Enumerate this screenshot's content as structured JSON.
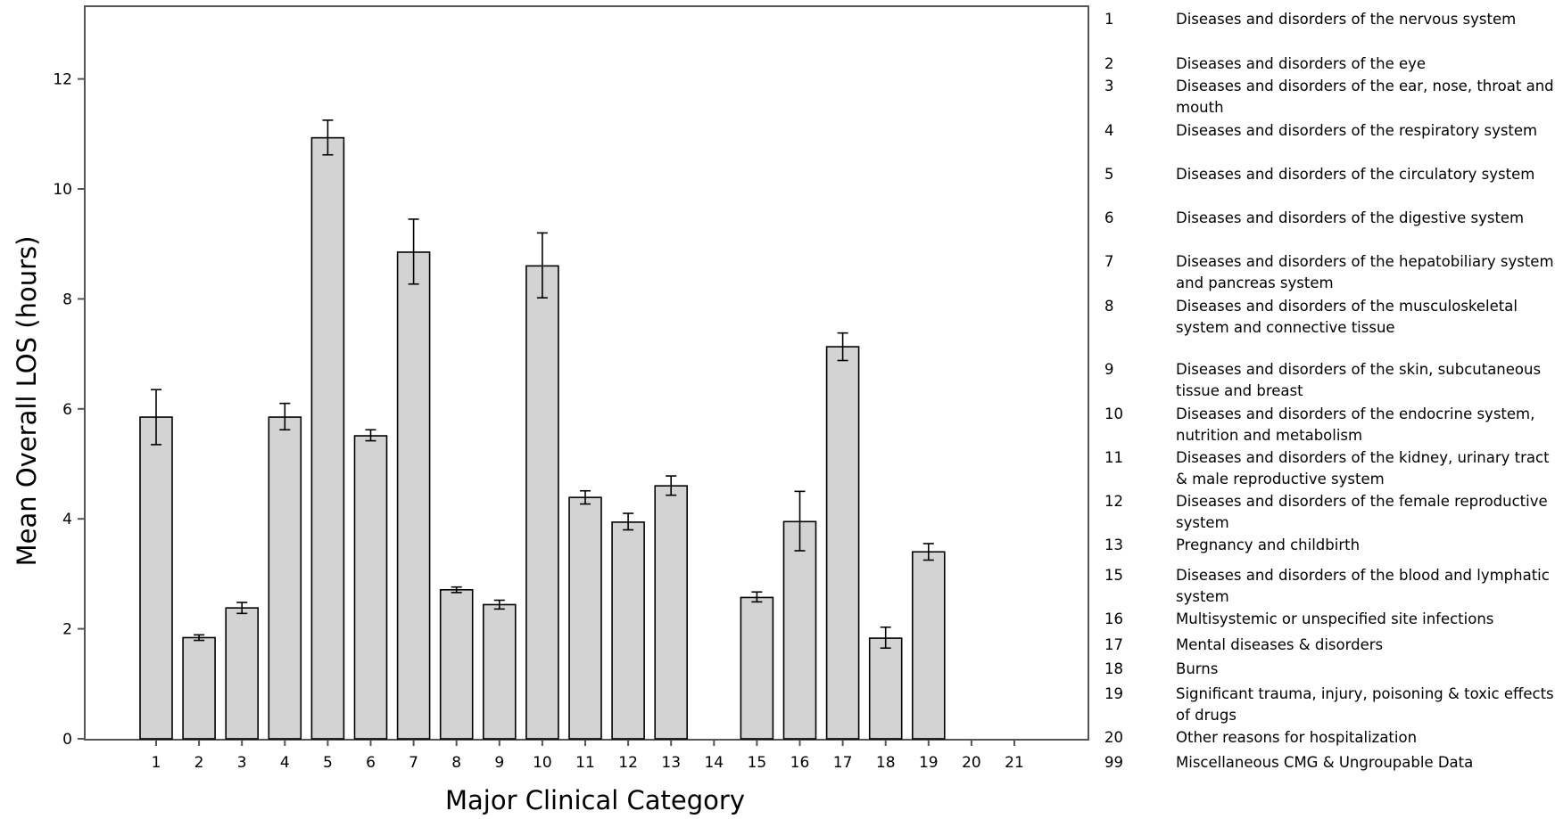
{
  "chart_data": {
    "type": "bar",
    "xlabel": "Major Clinical Category",
    "ylabel": "Mean Overall LOS (hours)",
    "ylim": [
      0,
      13.3
    ],
    "yticks": [
      0,
      2,
      4,
      6,
      8,
      10,
      12
    ],
    "grid": false,
    "error_bars": true,
    "categories": [
      "1",
      "2",
      "3",
      "4",
      "5",
      "6",
      "7",
      "8",
      "9",
      "10",
      "11",
      "12",
      "13",
      "14",
      "15",
      "16",
      "17",
      "18",
      "19",
      "20",
      "21"
    ],
    "values": [
      5.85,
      1.84,
      2.38,
      5.85,
      10.93,
      5.51,
      8.85,
      2.71,
      2.44,
      8.6,
      4.39,
      3.94,
      4.6,
      null,
      2.57,
      3.95,
      7.13,
      1.83,
      3.4,
      null,
      null
    ],
    "error_low": [
      5.35,
      1.79,
      2.28,
      5.62,
      10.62,
      5.42,
      8.27,
      2.66,
      2.36,
      8.02,
      4.27,
      3.8,
      4.43,
      null,
      2.49,
      3.42,
      6.88,
      1.65,
      3.25,
      null,
      null
    ],
    "error_high": [
      6.35,
      1.89,
      2.48,
      6.1,
      11.25,
      5.62,
      9.45,
      2.76,
      2.52,
      9.2,
      4.51,
      4.1,
      4.78,
      null,
      2.67,
      4.5,
      7.38,
      2.03,
      3.55,
      null,
      null
    ],
    "colors": {
      "bar_fill": "#d3d3d3",
      "bar_stroke": "#000000",
      "axis": "#555555"
    },
    "legend_placement": "right",
    "legend": [
      {
        "code": "1",
        "description": "Diseases and disorders of the nervous system"
      },
      {
        "code": "2",
        "description": "Diseases and disorders of the eye"
      },
      {
        "code": "3",
        "description": "Diseases and disorders of the ear, nose, throat and mouth"
      },
      {
        "code": "4",
        "description": "Diseases and disorders of the respiratory system"
      },
      {
        "code": "5",
        "description": "Diseases and disorders of the circulatory system"
      },
      {
        "code": "6",
        "description": "Diseases and disorders of the digestive system"
      },
      {
        "code": "7",
        "description": "Diseases and disorders of the hepatobiliary system and pancreas system"
      },
      {
        "code": "8",
        "description": "Diseases and disorders of the musculoskeletal system and connective tissue"
      },
      {
        "code": "9",
        "description": "Diseases and disorders of the skin, subcutaneous tissue and breast"
      },
      {
        "code": "10",
        "description": "Diseases and disorders of the endocrine system, nutrition and metabolism"
      },
      {
        "code": "11",
        "description": "Diseases and disorders of the kidney, urinary tract & male reproductive system"
      },
      {
        "code": "12",
        "description": "Diseases and disorders of the female reproductive system"
      },
      {
        "code": "13",
        "description": "Pregnancy and childbirth"
      },
      {
        "code": "15",
        "description": "Diseases and disorders of the blood and lymphatic system"
      },
      {
        "code": "16",
        "description": "Multisystemic or unspecified site infections"
      },
      {
        "code": "17",
        "description": "Mental diseases & disorders"
      },
      {
        "code": "18",
        "description": "Burns"
      },
      {
        "code": "19",
        "description": "Significant trauma, injury, poisoning & toxic effects of drugs"
      },
      {
        "code": "20",
        "description": "Other reasons for hospitalization"
      },
      {
        "code": "99",
        "description": "Miscellaneous CMG & Ungroupable Data"
      }
    ]
  }
}
